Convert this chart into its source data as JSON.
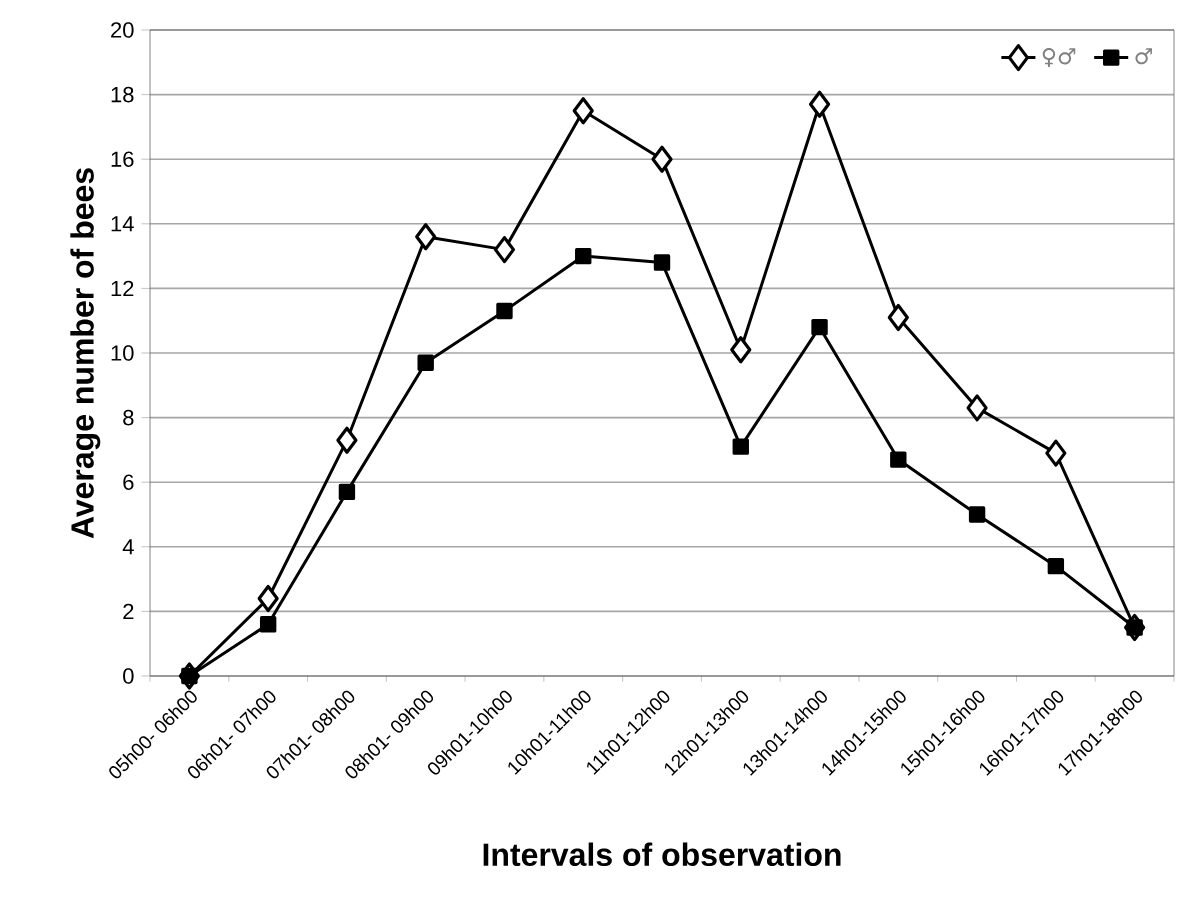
{
  "chart_data": {
    "type": "line",
    "xlabel": "Intervals  of observation",
    "ylabel": "Average number of bees",
    "categories": [
      "05h00- 06h00",
      "06h01- 07h00",
      "07h01- 08h00",
      "08h01- 09h00",
      "09h01-10h00",
      "10h01-11h00",
      "11h01-12h00",
      "12h01-13h00",
      "13h01-14h00",
      "14h01-15h00",
      "15h01-16h00",
      "16h01-17h00",
      "17h01-18h00"
    ],
    "series": [
      {
        "name": "♀♂",
        "color": "#000000",
        "marker": "diamond",
        "values": [
          0,
          2.4,
          7.3,
          13.6,
          13.2,
          17.5,
          16.0,
          10.1,
          17.7,
          11.1,
          8.3,
          6.9,
          1.5
        ]
      },
      {
        "name": "♂",
        "color": "#000000",
        "marker": "square",
        "values": [
          0,
          1.6,
          5.7,
          9.7,
          11.3,
          13.0,
          12.8,
          7.1,
          10.8,
          6.7,
          5.0,
          3.4,
          1.5
        ]
      }
    ],
    "ylim": [
      0,
      20
    ],
    "yticks": [
      0,
      2,
      4,
      6,
      8,
      10,
      12,
      14,
      16,
      18,
      20
    ],
    "grid": "y",
    "legend": "top right",
    "line_style": "solid"
  }
}
